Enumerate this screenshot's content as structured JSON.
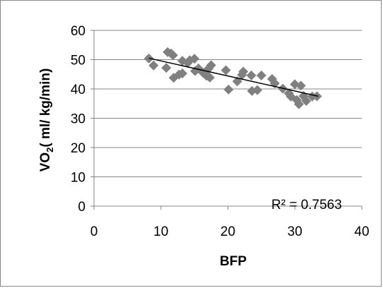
{
  "chart_data": {
    "type": "scatter",
    "title": "",
    "xlabel": "BFP",
    "ylabel_parts": {
      "main": "VO",
      "sub": "2",
      "rest": "( ml/ kg/min)"
    },
    "xlim": [
      0,
      40
    ],
    "ylim": [
      0,
      60
    ],
    "x_ticks": [
      "0",
      "10",
      "20",
      "30",
      "40"
    ],
    "y_ticks": [
      "0",
      "10",
      "20",
      "30",
      "40",
      "50",
      "60"
    ],
    "grid": "horizontal",
    "legend": "none",
    "marker": "diamond",
    "colors": {
      "marker": "#808080",
      "trendline": "#000000",
      "grid": "#868686",
      "axis": "#868686"
    },
    "points": [
      {
        "x": 8.2,
        "y": 50.4
      },
      {
        "x": 8.9,
        "y": 48.0
      },
      {
        "x": 10.8,
        "y": 47.2
      },
      {
        "x": 11.0,
        "y": 52.6
      },
      {
        "x": 11.5,
        "y": 52.1
      },
      {
        "x": 11.8,
        "y": 51.5
      },
      {
        "x": 11.9,
        "y": 43.8
      },
      {
        "x": 12.7,
        "y": 44.9
      },
      {
        "x": 13.2,
        "y": 45.3
      },
      {
        "x": 13.2,
        "y": 49.6
      },
      {
        "x": 14.0,
        "y": 48.9
      },
      {
        "x": 14.3,
        "y": 49.8
      },
      {
        "x": 15.0,
        "y": 50.3
      },
      {
        "x": 15.1,
        "y": 46.1
      },
      {
        "x": 15.6,
        "y": 47.0
      },
      {
        "x": 16.3,
        "y": 45.5
      },
      {
        "x": 16.8,
        "y": 44.5
      },
      {
        "x": 17.1,
        "y": 46.9
      },
      {
        "x": 17.3,
        "y": 43.9
      },
      {
        "x": 17.5,
        "y": 48.1
      },
      {
        "x": 19.7,
        "y": 46.4
      },
      {
        "x": 20.1,
        "y": 39.8
      },
      {
        "x": 21.4,
        "y": 42.6
      },
      {
        "x": 22.1,
        "y": 44.8
      },
      {
        "x": 22.3,
        "y": 45.9
      },
      {
        "x": 23.5,
        "y": 44.6
      },
      {
        "x": 23.6,
        "y": 39.3
      },
      {
        "x": 24.4,
        "y": 39.6
      },
      {
        "x": 25.0,
        "y": 44.6
      },
      {
        "x": 26.6,
        "y": 43.4
      },
      {
        "x": 27.0,
        "y": 41.9
      },
      {
        "x": 28.2,
        "y": 40.1
      },
      {
        "x": 29.1,
        "y": 38.5
      },
      {
        "x": 29.4,
        "y": 37.4
      },
      {
        "x": 30.0,
        "y": 41.6
      },
      {
        "x": 30.3,
        "y": 36.2
      },
      {
        "x": 30.6,
        "y": 34.8
      },
      {
        "x": 30.9,
        "y": 41.1
      },
      {
        "x": 31.3,
        "y": 37.6
      },
      {
        "x": 31.7,
        "y": 35.9
      },
      {
        "x": 32.6,
        "y": 37.4
      },
      {
        "x": 33.3,
        "y": 37.5
      }
    ],
    "trendline": {
      "x": [
        8.2,
        33.5
      ],
      "y": [
        50.5,
        37.5
      ]
    },
    "annotation": "R² = 0.7563"
  }
}
